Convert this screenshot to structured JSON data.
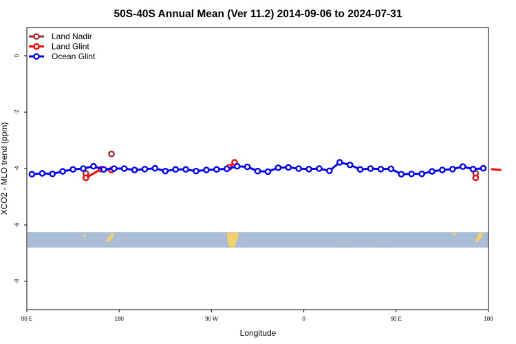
{
  "chart_data": {
    "type": "line",
    "title": "50S-40S Annual Mean (Ver 11.2)   2014-09-06 to 2024-07-31",
    "xlabel": "Longitude",
    "ylabel": "XCO2 - MLO trend (ppm)",
    "xlim": [
      90,
      540
    ],
    "ylim": [
      -9,
      1
    ],
    "x_ticks": [
      {
        "value": 90,
        "label": "90 E"
      },
      {
        "value": 180,
        "label": "180"
      },
      {
        "value": 270,
        "label": "90 W"
      },
      {
        "value": 360,
        "label": "0"
      },
      {
        "value": 450,
        "label": "90 E"
      },
      {
        "value": 540,
        "label": "180"
      }
    ],
    "y_ticks": [
      {
        "value": 0,
        "label": "0"
      },
      {
        "value": -2,
        "label": "-2"
      },
      {
        "value": -4,
        "label": "-4"
      },
      {
        "value": -6,
        "label": "-6"
      },
      {
        "value": -8,
        "label": "-8"
      }
    ],
    "legend_position": "top-left",
    "series": [
      {
        "name": "Land Nadir",
        "color": "#a52a2a",
        "segments": [
          [
            [
              147.5,
              -4.17
            ]
          ],
          [
            [
              172.5,
              -3.48
            ]
          ],
          [
            [
              527.5,
              -4.17
            ]
          ],
          [
            [
              552.5,
              -3.48
            ]
          ]
        ]
      },
      {
        "name": "Land Glint",
        "color": "#ff0000",
        "segments": [
          [
            [
              147.5,
              -4.33
            ],
            [
              162.5,
              -4.02
            ],
            [
              172.5,
              -4.05
            ]
          ],
          [
            [
              287.5,
              -3.95
            ],
            [
              292.5,
              -3.78
            ]
          ],
          [
            [
              527.5,
              -4.33
            ]
          ],
          [
            [
              542.5,
              -4.02
            ],
            [
              552.5,
              -4.05
            ]
          ]
        ]
      },
      {
        "name": "Ocean Glint",
        "color": "#0000ff",
        "segments": [
          [
            [
              95,
              -4.2
            ],
            [
              105,
              -4.17
            ],
            [
              115,
              -4.19
            ],
            [
              125,
              -4.1
            ],
            [
              135,
              -4.03
            ],
            [
              145,
              -4.0
            ],
            [
              155,
              -3.92
            ],
            [
              165,
              -4.03
            ],
            [
              175,
              -4.0
            ],
            [
              185,
              -4.0
            ],
            [
              195,
              -4.05
            ],
            [
              205,
              -4.02
            ],
            [
              215,
              -3.99
            ],
            [
              225,
              -4.09
            ],
            [
              235,
              -4.03
            ],
            [
              245,
              -4.03
            ],
            [
              255,
              -4.09
            ],
            [
              265,
              -4.05
            ],
            [
              275,
              -4.03
            ],
            [
              285,
              -4.01
            ],
            [
              295,
              -3.92
            ],
            [
              305,
              -3.94
            ],
            [
              315,
              -4.09
            ],
            [
              325,
              -4.11
            ],
            [
              335,
              -3.97
            ],
            [
              345,
              -3.96
            ],
            [
              355,
              -4.0
            ],
            [
              365,
              -4.02
            ],
            [
              375,
              -4.0
            ],
            [
              385,
              -4.08
            ],
            [
              395,
              -3.78
            ],
            [
              405,
              -3.87
            ],
            [
              415,
              -4.03
            ],
            [
              425,
              -4.0
            ],
            [
              435,
              -4.02
            ],
            [
              445,
              -4.01
            ],
            [
              455,
              -4.2
            ],
            [
              465,
              -4.19
            ],
            [
              475,
              -4.19
            ],
            [
              485,
              -4.1
            ],
            [
              495,
              -4.05
            ],
            [
              505,
              -4.02
            ],
            [
              515,
              -3.93
            ],
            [
              525,
              -4.02
            ],
            [
              535,
              -3.99
            ]
          ]
        ]
      }
    ],
    "map_band": {
      "y_range": [
        -6.8,
        -6.25
      ],
      "ocean_color": "#a9bdd6",
      "land_color": "#f4d06b"
    }
  }
}
